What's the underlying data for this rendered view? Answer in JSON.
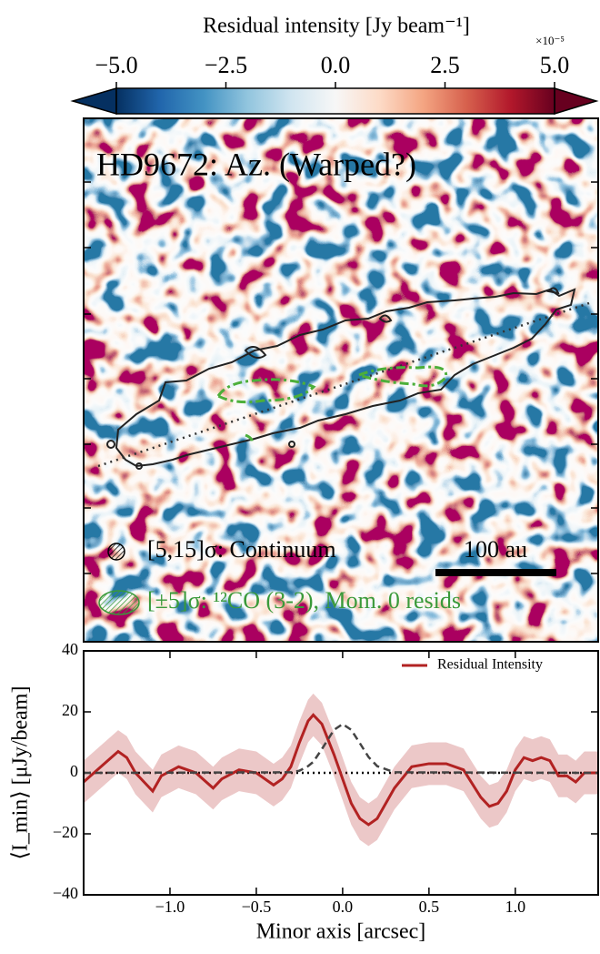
{
  "chart_data": [
    {
      "type": "image",
      "colorbar_label": "Residual intensity [Jy beam⁻¹]",
      "colorbar_multiplier": "×10⁻⁵",
      "clim": [
        -5,
        5
      ],
      "colorbar_ticks": [
        {
          "value": -5,
          "label": "−5.0"
        },
        {
          "value": -2.5,
          "label": "−2.5"
        },
        {
          "value": 0,
          "label": "0.0"
        },
        {
          "value": 2.5,
          "label": "2.5"
        },
        {
          "value": 5,
          "label": "5.0"
        }
      ],
      "title": "HD9672: Az. (Warped?)",
      "legend": [
        "[5,15]σ: Continuum",
        "[±5]σ: ¹²CO (3-2), Mom. 0 resids"
      ],
      "scale_bar": "100 au"
    },
    {
      "type": "line",
      "xlabel": "Minor axis [arcsec]",
      "ylabel": "⟨I_min⟩ [μJy/beam]",
      "xlim": [
        -1.5,
        1.48
      ],
      "ylim": [
        -40,
        40
      ],
      "xticks": [
        {
          "value": -1,
          "label": "−1.0"
        },
        {
          "value": -0.5,
          "label": "−0.5"
        },
        {
          "value": 0,
          "label": "0.0"
        },
        {
          "value": 0.5,
          "label": "0.5"
        },
        {
          "value": 1,
          "label": "1.0"
        }
      ],
      "yticks": [
        {
          "value": -40,
          "label": "−40"
        },
        {
          "value": -20,
          "label": "−20"
        },
        0,
        20,
        40
      ],
      "hline": 0,
      "series": [
        {
          "name": "Residual Intensity",
          "color": "#b22222",
          "x": [
            -1.5,
            -1.4,
            -1.3,
            -1.25,
            -1.2,
            -1.1,
            -1.05,
            -0.95,
            -0.85,
            -0.75,
            -0.7,
            -0.6,
            -0.5,
            -0.4,
            -0.35,
            -0.3,
            -0.25,
            -0.2,
            -0.17,
            -0.12,
            -0.05,
            0,
            0.05,
            0.1,
            0.15,
            0.2,
            0.3,
            0.4,
            0.5,
            0.6,
            0.7,
            0.8,
            0.85,
            0.9,
            0.95,
            1.0,
            1.05,
            1.1,
            1.15,
            1.2,
            1.25,
            1.3,
            1.35,
            1.4,
            1.48
          ],
          "values": [
            -3,
            2,
            7,
            5,
            0,
            -6,
            -1,
            2,
            0,
            -5,
            -2,
            1,
            0,
            -4,
            -2,
            2,
            10,
            17,
            19,
            16,
            6,
            -2,
            -10,
            -15,
            -17,
            -15,
            -5,
            2,
            3,
            3,
            1,
            -8,
            -11,
            -10,
            -6,
            1,
            5,
            4,
            5,
            4,
            -1,
            -1,
            -3,
            0,
            0
          ],
          "errors": [
            7,
            7,
            7,
            7,
            7,
            7,
            7,
            7,
            7,
            7,
            7,
            7,
            7,
            7,
            7,
            7,
            7,
            7,
            7,
            7,
            7,
            7,
            7,
            7,
            7,
            7,
            7,
            7,
            7,
            7,
            7,
            7,
            7,
            7,
            7,
            7,
            7,
            7,
            7,
            7,
            7,
            7,
            7,
            7,
            7
          ]
        },
        {
          "color": "#444444",
          "x": [
            -1.5,
            -0.3,
            -0.25,
            -0.2,
            -0.17,
            -0.12,
            -0.05,
            0,
            0.05,
            0.1,
            0.15,
            0.2,
            0.3,
            1.48
          ],
          "values": [
            0,
            0.18,
            0.7,
            2.2,
            3.6,
            7.8,
            14.1,
            16,
            14.1,
            9.7,
            5.2,
            2.2,
            0.18,
            0
          ]
        }
      ]
    }
  ]
}
